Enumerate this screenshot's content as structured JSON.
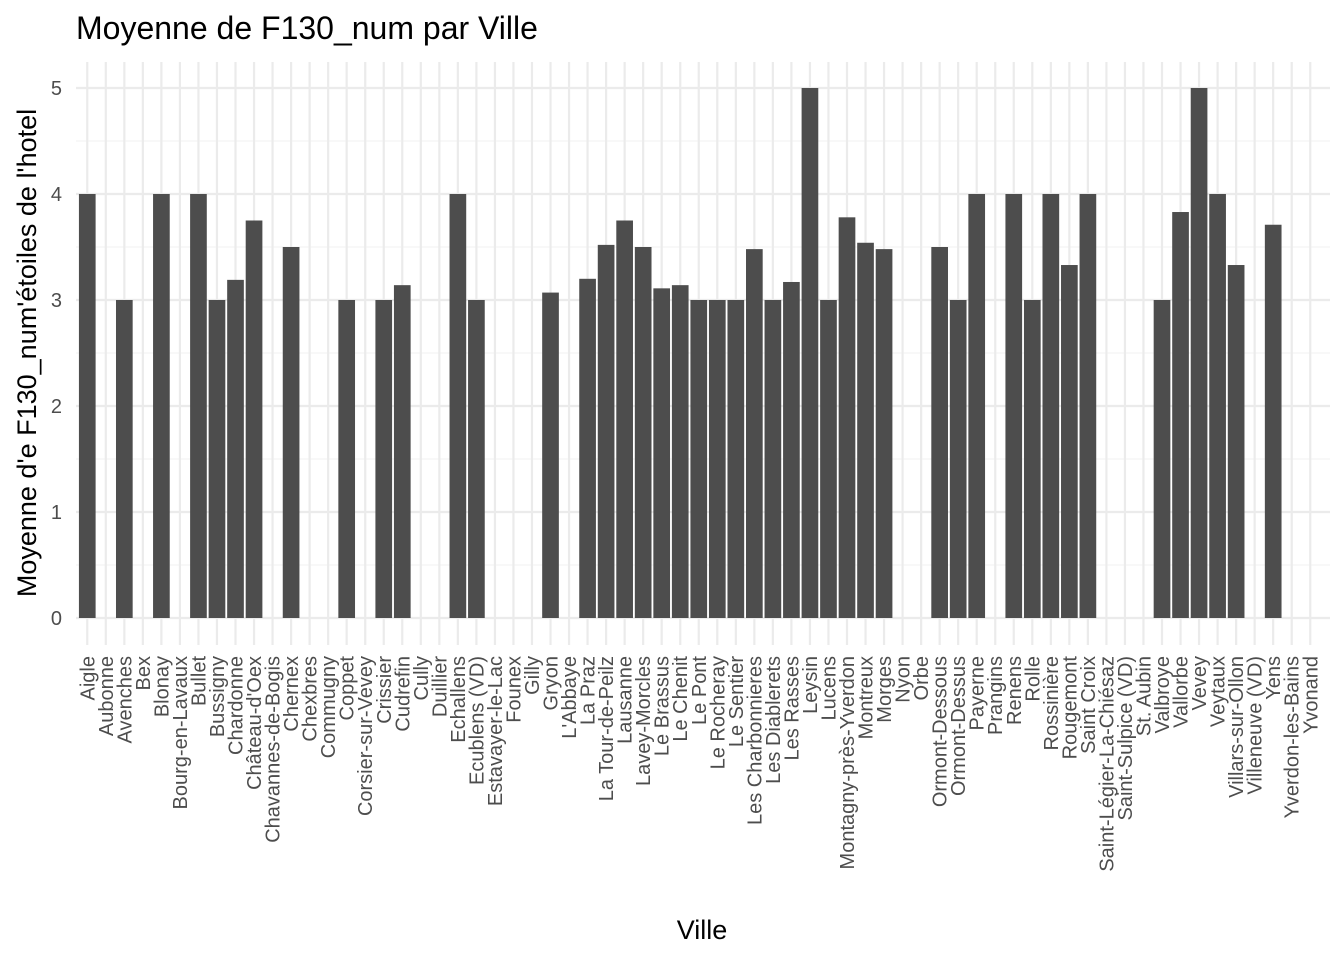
{
  "chart_data": {
    "type": "bar",
    "title": "Moyenne de F130_num par Ville",
    "xlabel": "Ville",
    "ylabel": "Moyenne d'e F130_num'étoiles de l'hotel",
    "ylim": [
      0,
      5.25
    ],
    "yticks": [
      0,
      1,
      2,
      3,
      4,
      5
    ],
    "grid": true,
    "legend": "none",
    "colors": {
      "bar": "#4d4d4d",
      "grid": "#ebebeb",
      "background": "#ffffff"
    },
    "categories": [
      "Aigle",
      "Aubonne",
      "Avenches",
      "Bex",
      "Blonay",
      "Bourg-en-Lavaux",
      "Bullet",
      "Bussigny",
      "Chardonne",
      "Château-d'Oex",
      "Chavannes-de-Bogis",
      "Chernex",
      "Chexbres",
      "Commugny",
      "Coppet",
      "Corsier-sur-Vevey",
      "Crissier",
      "Cudrefin",
      "Cully",
      "Duillier",
      "Echallens",
      "Ecublens (VD)",
      "Estavayer-le-Lac",
      "Founex",
      "Gilly",
      "Gryon",
      "L'Abbaye",
      "La Praz",
      "La Tour-de-Peilz",
      "Lausanne",
      "Lavey-Morcles",
      "Le Brassus",
      "Le Chenit",
      "Le Pont",
      "Le Rocheray",
      "Le Sentier",
      "Les Charbonnieres",
      "Les Diablerets",
      "Les Rasses",
      "Leysin",
      "Lucens",
      "Montagny-près-Yverdon",
      "Montreux",
      "Morges",
      "Nyon",
      "Orbe",
      "Ormont-Dessous",
      "Ormont-Dessus",
      "Payerne",
      "Prangins",
      "Renens",
      "Rolle",
      "Rossinière",
      "Rougemont",
      "Saint Croix",
      "Saint-Légier-La-Chiésaz",
      "Saint-Sulpice (VD)",
      "St. Aubin",
      "Valbroye",
      "Vallorbe",
      "Vevey",
      "Veytaux",
      "Villars-sur-Ollon",
      "Villeneuve (VD)",
      "Yens",
      "Yverdon-les-Bains",
      "Yvonand"
    ],
    "values": [
      4,
      null,
      3,
      null,
      4,
      null,
      4,
      3,
      3.19,
      3.75,
      null,
      3.5,
      null,
      null,
      3,
      null,
      3,
      3.14,
      null,
      null,
      4,
      3,
      null,
      null,
      null,
      3.07,
      null,
      3.2,
      3.52,
      3.75,
      3.5,
      3.11,
      3.14,
      3,
      3,
      3,
      3.48,
      3,
      3.17,
      5,
      3,
      3.78,
      3.54,
      3.48,
      null,
      null,
      3.5,
      3,
      4,
      null,
      4,
      3,
      4,
      3.33,
      4,
      null,
      null,
      null,
      3,
      3.83,
      5,
      4,
      3.33,
      null,
      3.71,
      null,
      null
    ]
  }
}
